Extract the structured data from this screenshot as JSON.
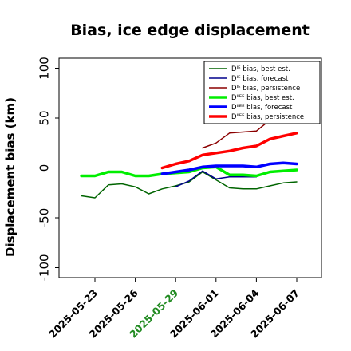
{
  "chart_data": {
    "type": "line",
    "title": "Bias, ice edge displacement",
    "xlabel": "",
    "ylabel": "Displacement bias (km)",
    "ylim": [
      -110,
      110
    ],
    "yticks": [
      -100,
      -50,
      0,
      50,
      100
    ],
    "grid": false,
    "legend_position": "upper-right",
    "xtick_labels": [
      "2025-05-23",
      "2025-05-26",
      "2025-05-29",
      "2025-06-01",
      "2025-06-04",
      "2025-06-07"
    ],
    "xtick_colors": [
      "#000000",
      "#000000",
      "#228B22",
      "#000000",
      "#000000",
      "#000000"
    ],
    "x_dates": [
      "2025-05-21",
      "2025-05-22",
      "2025-05-23",
      "2025-05-24",
      "2025-05-25",
      "2025-05-26",
      "2025-05-27",
      "2025-05-28",
      "2025-05-29",
      "2025-05-30",
      "2025-05-31",
      "2025-06-01",
      "2025-06-02",
      "2025-06-03",
      "2025-06-04",
      "2025-06-05",
      "2025-06-06",
      "2025-06-07"
    ],
    "zero_line": true,
    "series": [
      {
        "name": "Dᴵᴱ bias, best est.",
        "color": "#006400",
        "width": 1.5,
        "x": [
          "2025-05-22",
          "2025-05-23",
          "2025-05-24",
          "2025-05-25",
          "2025-05-26",
          "2025-05-27",
          "2025-05-28",
          "2025-05-29",
          "2025-05-30",
          "2025-05-31",
          "2025-06-01",
          "2025-06-02",
          "2025-06-03",
          "2025-06-04",
          "2025-06-05",
          "2025-06-06",
          "2025-06-07"
        ],
        "values": [
          -28,
          -30,
          -17,
          -16,
          -19,
          -26,
          -21,
          -18,
          -14,
          -4,
          -12,
          -20,
          -21,
          -21,
          -18,
          -15,
          -14
        ]
      },
      {
        "name": "Dᴵᴱ bias, forecast",
        "color": "#00008B",
        "width": 1.5,
        "x": [
          "2025-05-29",
          "2025-05-30",
          "2025-05-31",
          "2025-06-01",
          "2025-06-02",
          "2025-06-03",
          "2025-06-04"
        ],
        "values": [
          -19,
          -13,
          -3,
          -11,
          -9,
          -9,
          -9
        ]
      },
      {
        "name": "Dᴵᴱ bias, persistence",
        "color": "#8B0000",
        "width": 1.5,
        "x": [
          "2025-05-31",
          "2025-06-01",
          "2025-06-02",
          "2025-06-03",
          "2025-06-04",
          "2025-06-05"
        ],
        "values": [
          20,
          25,
          35,
          36,
          37,
          48
        ]
      },
      {
        "name": "Dᴵᴵᴱᴱ bias, best est.",
        "color": "#00EE00",
        "width": 3.5,
        "x": [
          "2025-05-22",
          "2025-05-23",
          "2025-05-24",
          "2025-05-25",
          "2025-05-26",
          "2025-05-27",
          "2025-05-28",
          "2025-05-29",
          "2025-05-30",
          "2025-05-31",
          "2025-06-01",
          "2025-06-02",
          "2025-06-03",
          "2025-06-04",
          "2025-06-05",
          "2025-06-06",
          "2025-06-07"
        ],
        "values": [
          -8,
          -8,
          -4,
          -4,
          -8,
          -8,
          -6,
          -5,
          -4,
          0,
          1,
          -7,
          -7,
          -8,
          -4,
          -3,
          -2
        ]
      },
      {
        "name": "Dᴵᴵᴱᴱ bias, forecast",
        "color": "#0000FF",
        "width": 3.5,
        "x": [
          "2025-05-28",
          "2025-05-29",
          "2025-05-30",
          "2025-05-31",
          "2025-06-01",
          "2025-06-02",
          "2025-06-03",
          "2025-06-04",
          "2025-06-05",
          "2025-06-06",
          "2025-06-07"
        ],
        "values": [
          -6,
          -4,
          -2,
          1,
          2,
          2,
          2,
          1,
          4,
          5,
          4
        ]
      },
      {
        "name": "Dᴵᴵᴱᴱ bias, persistence",
        "color": "#FF0000",
        "width": 3.5,
        "x": [
          "2025-05-28",
          "2025-05-29",
          "2025-05-30",
          "2025-05-31",
          "2025-06-01",
          "2025-06-02",
          "2025-06-03",
          "2025-06-04",
          "2025-06-05",
          "2025-06-06",
          "2025-06-07"
        ],
        "values": [
          0,
          4,
          7,
          13,
          15,
          17,
          20,
          22,
          29,
          32,
          35
        ]
      }
    ]
  }
}
